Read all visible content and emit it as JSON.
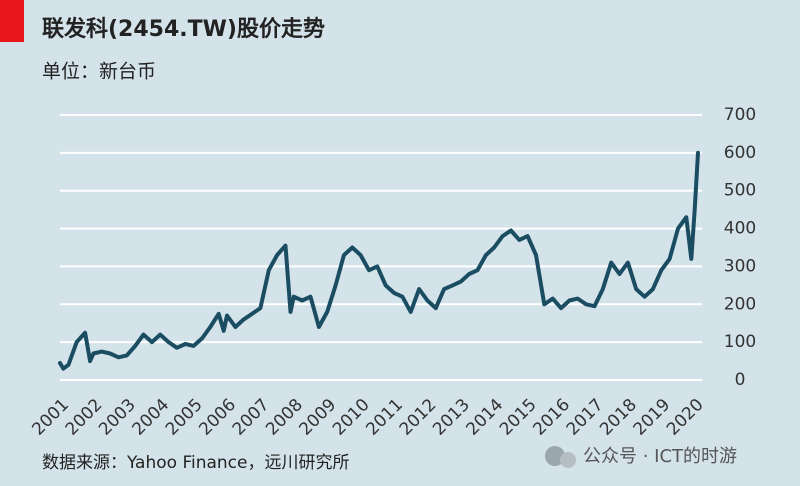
{
  "chart_data": {
    "type": "line",
    "title": "联发科(2454.TW)股价走势",
    "subtitle": "单位：新台币",
    "source": "数据来源：Yahoo Finance，远川研究所",
    "watermark": "公众号 · ICT的时游",
    "x": [
      2001,
      2001.1,
      2001.25,
      2001.5,
      2001.75,
      2001.9,
      2002,
      2002.25,
      2002.5,
      2002.75,
      2003,
      2003.25,
      2003.5,
      2003.75,
      2004,
      2004.25,
      2004.5,
      2004.75,
      2005,
      2005.25,
      2005.5,
      2005.75,
      2005.9,
      2006,
      2006.25,
      2006.5,
      2006.75,
      2007,
      2007.25,
      2007.5,
      2007.75,
      2007.9,
      2008,
      2008.25,
      2008.5,
      2008.75,
      2009,
      2009.25,
      2009.5,
      2009.75,
      2010,
      2010.25,
      2010.5,
      2010.75,
      2011,
      2011.25,
      2011.5,
      2011.75,
      2012,
      2012.25,
      2012.5,
      2012.75,
      2013,
      2013.25,
      2013.5,
      2013.75,
      2014,
      2014.25,
      2014.5,
      2014.75,
      2015,
      2015.25,
      2015.5,
      2015.75,
      2016,
      2016.25,
      2016.5,
      2016.75,
      2017,
      2017.25,
      2017.5,
      2017.75,
      2018,
      2018.25,
      2018.5,
      2018.75,
      2019,
      2019.25,
      2019.5,
      2019.75,
      2019.9,
      2020,
      2020.1
    ],
    "series": [
      {
        "name": "2454.TW",
        "color": "#1b4d62",
        "values": [
          45,
          30,
          40,
          100,
          125,
          50,
          70,
          75,
          70,
          60,
          65,
          90,
          120,
          100,
          120,
          100,
          85,
          95,
          90,
          110,
          140,
          175,
          130,
          170,
          140,
          160,
          175,
          190,
          290,
          330,
          355,
          180,
          220,
          210,
          220,
          140,
          180,
          250,
          330,
          350,
          330,
          290,
          300,
          250,
          230,
          220,
          180,
          240,
          210,
          190,
          240,
          250,
          260,
          280,
          290,
          330,
          350,
          380,
          395,
          370,
          380,
          330,
          200,
          215,
          190,
          210,
          215,
          200,
          195,
          240,
          310,
          280,
          310,
          240,
          220,
          240,
          290,
          320,
          400,
          430,
          320,
          450,
          600
        ]
      }
    ],
    "xlim": [
      2001,
      2020.1
    ],
    "xticks": [
      2001,
      2002,
      2003,
      2004,
      2005,
      2006,
      2007,
      2008,
      2009,
      2010,
      2011,
      2012,
      2013,
      2014,
      2015,
      2016,
      2017,
      2018,
      2019,
      2020
    ],
    "ylim": [
      0,
      700
    ],
    "yticks": [
      0,
      100,
      200,
      300,
      400,
      500,
      600,
      700
    ],
    "grid": true
  }
}
